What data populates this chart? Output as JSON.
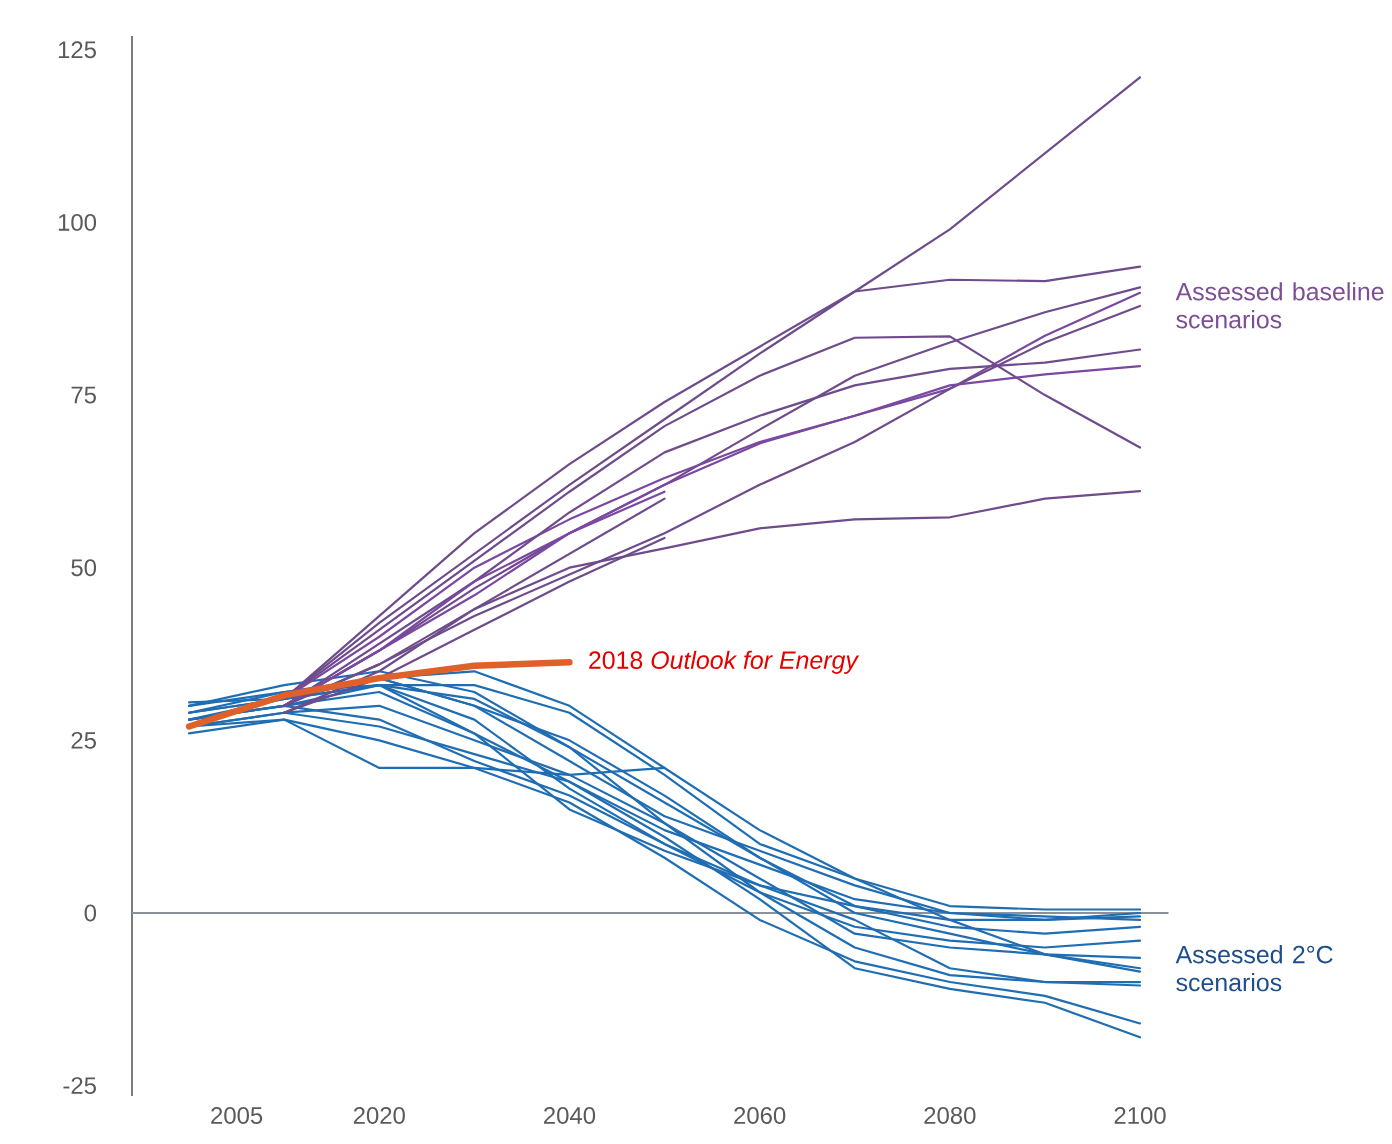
{
  "chart_data": {
    "type": "line",
    "x": [
      2000,
      2010,
      2020,
      2030,
      2040,
      2050,
      2060,
      2070,
      2080,
      2090,
      2100
    ],
    "xlim": [
      1994,
      2100
    ],
    "xticks": [
      2005,
      2020,
      2040,
      2060,
      2080,
      2100
    ],
    "ylim": [
      -26.5,
      127
    ],
    "yticks": [
      -25,
      0,
      25,
      50,
      75,
      100,
      125
    ],
    "grid": false,
    "ref_lines": [
      {
        "axis": "y",
        "value": 0,
        "color": "#8a9199"
      }
    ],
    "annotations": [
      {
        "text": "Assessed baseline scenarios",
        "x": 2100,
        "y": 88
      },
      {
        "text": "Assessed 2°C scenarios",
        "x": 2100,
        "y": -8
      }
    ],
    "series": [
      {
        "color": "#1f6db3",
        "values": [
          28,
          30,
          33,
          33,
          29,
          20,
          10,
          5,
          1,
          0.5,
          0.5
        ]
      },
      {
        "color": "#1f6db3",
        "values": [
          29,
          31,
          34,
          30,
          22,
          14,
          9,
          4,
          0,
          -1,
          -0.5
        ]
      },
      {
        "color": "#1f6db3",
        "values": [
          27,
          29,
          30,
          25,
          20,
          13,
          5,
          -3,
          -5,
          -6,
          -6.5
        ]
      },
      {
        "color": "#1f6db3",
        "values": [
          30,
          32,
          33,
          28,
          18,
          10,
          3,
          -2,
          -4,
          -5,
          -4
        ]
      },
      {
        "color": "#1f6db3",
        "values": [
          26,
          28,
          25,
          21,
          16,
          8,
          -1,
          -7,
          -10,
          -12,
          -16
        ]
      },
      {
        "color": "#1f6db3",
        "values": [
          28,
          30,
          32,
          26,
          19,
          11,
          2,
          -8,
          -11,
          -13,
          -18
        ]
      },
      {
        "color": "#1f6db3",
        "values": [
          27,
          28,
          21,
          21,
          20,
          21,
          null,
          null,
          null,
          null,
          null
        ]
      },
      {
        "color": "#1f6db3",
        "values": [
          29,
          31,
          33,
          31,
          24,
          16,
          8,
          0,
          -3,
          -6,
          -8.5
        ]
      },
      {
        "color": "#1f6db3",
        "values": [
          28,
          30,
          28,
          22,
          17,
          10,
          4,
          -1,
          -8,
          -10,
          -10
        ]
      },
      {
        "color": "#1f6db3",
        "values": [
          30,
          33,
          35,
          32,
          24,
          13,
          3,
          -5,
          -9,
          -10,
          -10.5
        ]
      },
      {
        "color": "#1f6db3",
        "values": [
          27,
          29,
          27,
          23,
          19,
          12,
          7,
          2,
          0,
          -0.5,
          -1
        ]
      },
      {
        "color": "#1f6db3",
        "values": [
          30.5,
          31,
          33,
          26,
          15,
          9,
          4,
          1,
          -1,
          -1,
          0
        ]
      },
      {
        "color": "#1f6db3",
        "values": [
          29,
          32,
          34,
          30,
          25,
          17,
          8,
          1,
          -2,
          -3,
          -2
        ]
      },
      {
        "color": "#1f6db3",
        "values": [
          28,
          31,
          34,
          35,
          30,
          21,
          12,
          5,
          -1,
          -6,
          -8
        ]
      },
      {
        "color": "#6e4c8c",
        "values": [
          null,
          31,
          43,
          55,
          65,
          74,
          82,
          90,
          99,
          110,
          121
        ]
      },
      {
        "color": "#6e4c8c",
        "values": [
          null,
          31,
          42,
          52,
          62,
          71.5,
          81,
          90,
          91.7,
          91.5,
          93.6
        ]
      },
      {
        "color": "#6e4c8c",
        "values": [
          null,
          31,
          41,
          51,
          61,
          70.5,
          77.8,
          83.3,
          83.5,
          75,
          67.4
        ]
      },
      {
        "color": "#6e4c8c",
        "values": [
          null,
          30,
          38,
          47,
          55,
          62,
          70,
          77.8,
          82.6,
          87,
          90.6
        ]
      },
      {
        "color": "#7a48a0",
        "values": [
          null,
          31,
          40,
          50,
          57,
          63,
          68.2,
          72,
          75.9,
          83.6,
          89.8
        ]
      },
      {
        "color": "#6e4c8c",
        "values": [
          null,
          30,
          36,
          43,
          49,
          55,
          62,
          68.2,
          75.9,
          82.6,
          87.9
        ]
      },
      {
        "color": "#6e4c8c",
        "values": [
          null,
          30,
          39,
          48,
          58,
          66.7,
          72,
          76.4,
          78.8,
          79.7,
          81.6
        ]
      },
      {
        "color": "#7a48a0",
        "values": [
          null,
          30,
          38,
          46,
          55,
          62,
          68,
          72,
          76.4,
          78,
          79.2
        ]
      },
      {
        "color": "#6e4c8c",
        "values": [
          null,
          29,
          35,
          44,
          50,
          52.8,
          55.7,
          57,
          57.3,
          60,
          61.1
        ]
      },
      {
        "color": "#7a48a0",
        "values": [
          null,
          30,
          38,
          48,
          55,
          61,
          null,
          null,
          null,
          null,
          null
        ]
      },
      {
        "color": "#6e4c8c",
        "values": [
          null,
          30,
          36,
          44,
          52,
          60,
          null,
          null,
          null,
          null,
          null
        ]
      },
      {
        "color": "#6e4c8c",
        "values": [
          null,
          29,
          34,
          41,
          48,
          54.3,
          null,
          null,
          null,
          null,
          null
        ]
      },
      {
        "name": "2018 *Outlook for Energy*",
        "color": "#e0602a",
        "values": [
          27,
          31.5,
          34,
          35.8,
          36.3,
          null,
          null,
          null,
          null,
          null,
          null
        ]
      }
    ]
  }
}
